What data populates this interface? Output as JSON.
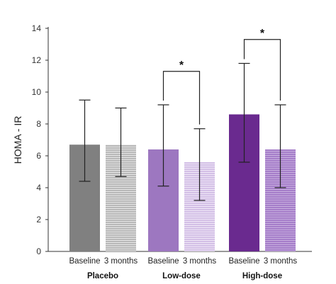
{
  "chart_data": {
    "type": "bar",
    "ylabel": "HOMA - IR",
    "ylim": [
      0,
      14
    ],
    "yticks": [
      0,
      2,
      4,
      6,
      8,
      10,
      12,
      14
    ],
    "grid": false,
    "groups": [
      {
        "name": "Placebo",
        "bars": [
          {
            "label": "Baseline",
            "value": 6.7,
            "err_low": 4.4,
            "err_high": 9.5,
            "color": "#808080",
            "hatched": false
          },
          {
            "label": "3 months",
            "value": 6.7,
            "err_low": 4.7,
            "err_high": 9.0,
            "color": "#b3b3b3",
            "hatched": true
          }
        ],
        "significance": null
      },
      {
        "name": "Low-dose",
        "bars": [
          {
            "label": "Baseline",
            "value": 6.4,
            "err_low": 4.1,
            "err_high": 9.2,
            "color": "#9d77c0",
            "hatched": false
          },
          {
            "label": "3 months",
            "value": 5.6,
            "err_low": 3.2,
            "err_high": 7.7,
            "color": "#d8c6e8",
            "hatched": true
          }
        ],
        "significance": {
          "text": "*",
          "bracket_y": 11.3
        }
      },
      {
        "name": "High-dose",
        "bars": [
          {
            "label": "Baseline",
            "value": 8.6,
            "err_low": 5.6,
            "err_high": 11.8,
            "color": "#6a2a8f",
            "hatched": false
          },
          {
            "label": "3 months",
            "value": 6.4,
            "err_low": 4.0,
            "err_high": 9.2,
            "color": "#a77fcb",
            "hatched": true
          }
        ],
        "significance": {
          "text": "*",
          "bracket_y": 13.3
        }
      }
    ]
  }
}
